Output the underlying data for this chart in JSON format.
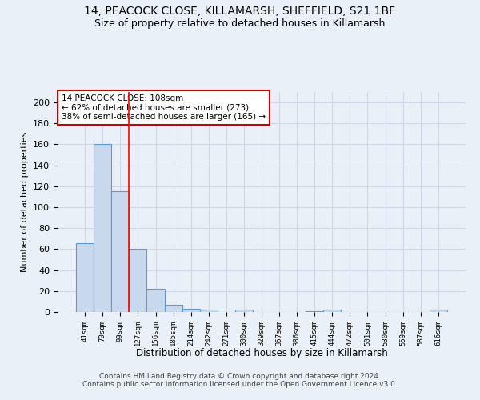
{
  "title1": "14, PEACOCK CLOSE, KILLAMARSH, SHEFFIELD, S21 1BF",
  "title2": "Size of property relative to detached houses in Killamarsh",
  "xlabel": "Distribution of detached houses by size in Killamarsh",
  "ylabel": "Number of detached properties",
  "categories": [
    "41sqm",
    "70sqm",
    "99sqm",
    "127sqm",
    "156sqm",
    "185sqm",
    "214sqm",
    "242sqm",
    "271sqm",
    "300sqm",
    "329sqm",
    "357sqm",
    "386sqm",
    "415sqm",
    "444sqm",
    "472sqm",
    "501sqm",
    "530sqm",
    "559sqm",
    "587sqm",
    "616sqm"
  ],
  "values": [
    66,
    160,
    115,
    60,
    22,
    7,
    3,
    2,
    0,
    2,
    0,
    0,
    0,
    1,
    2,
    0,
    0,
    0,
    0,
    0,
    2
  ],
  "bar_color": "#c8d9ed",
  "bar_edge_color": "#5b9bd5",
  "grid_color": "#d0d8e8",
  "background_color": "#eaf0f8",
  "red_line_x": 2.5,
  "annotation_line1": "14 PEACOCK CLOSE: 108sqm",
  "annotation_line2": "← 62% of detached houses are smaller (273)",
  "annotation_line3": "38% of semi-detached houses are larger (165) →",
  "annotation_box_color": "#ffffff",
  "annotation_box_edge": "#cc0000",
  "ylim": [
    0,
    210
  ],
  "yticks": [
    0,
    20,
    40,
    60,
    80,
    100,
    120,
    140,
    160,
    180,
    200
  ],
  "footer": "Contains HM Land Registry data © Crown copyright and database right 2024.\nContains public sector information licensed under the Open Government Licence v3.0."
}
